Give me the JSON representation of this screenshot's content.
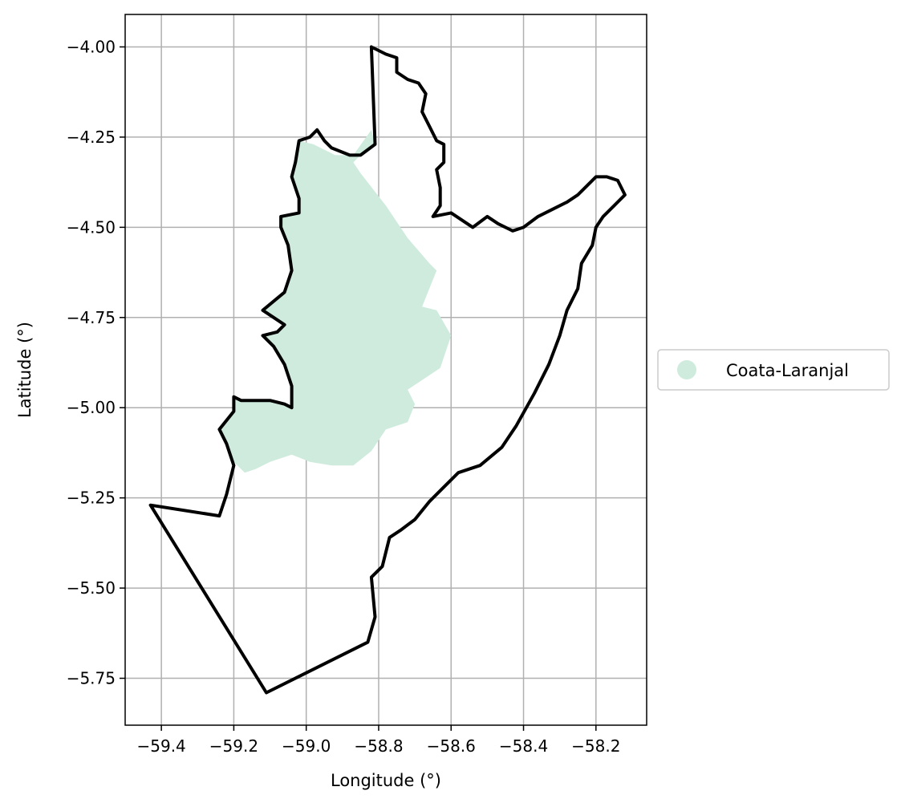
{
  "map": {
    "xlabel": "Longitude (°)",
    "ylabel": "Latitude (°)",
    "x_ticks": [
      "−59.4",
      "−59.2",
      "−59.0",
      "−58.8",
      "−58.6",
      "−58.4",
      "−58.2"
    ],
    "y_ticks": [
      "−4.00",
      "−4.25",
      "−4.50",
      "−4.75",
      "−5.00",
      "−5.25",
      "−5.50",
      "−5.75"
    ],
    "legend": {
      "placement": "center-right, outside axes",
      "entries": [
        {
          "label": "Coata-Laranjal",
          "color": "#cfebdd",
          "marker": "circle"
        }
      ]
    },
    "grid": true,
    "colors": {
      "boundary": "#000000",
      "area_fill": "#cfebdd",
      "grid": "#b0b0b0"
    }
  },
  "chart_data": {
    "type": "map",
    "xlim": [
      -59.5,
      -58.06
    ],
    "ylim": [
      -5.88,
      -3.91
    ],
    "x_tick_values": [
      -59.4,
      -59.2,
      -59.0,
      -58.8,
      -58.6,
      -58.4,
      -58.2
    ],
    "y_tick_values": [
      -4.0,
      -4.25,
      -4.5,
      -4.75,
      -5.0,
      -5.25,
      -5.5,
      -5.75
    ],
    "boundary": [
      [
        -58.82,
        -4.0
      ],
      [
        -58.78,
        -4.02
      ],
      [
        -58.75,
        -4.03
      ],
      [
        -58.75,
        -4.07
      ],
      [
        -58.72,
        -4.09
      ],
      [
        -58.69,
        -4.1
      ],
      [
        -58.67,
        -4.13
      ],
      [
        -58.68,
        -4.18
      ],
      [
        -58.66,
        -4.22
      ],
      [
        -58.64,
        -4.26
      ],
      [
        -58.62,
        -4.27
      ],
      [
        -58.62,
        -4.32
      ],
      [
        -58.64,
        -4.34
      ],
      [
        -58.63,
        -4.39
      ],
      [
        -58.63,
        -4.44
      ],
      [
        -58.65,
        -4.47
      ],
      [
        -58.6,
        -4.46
      ],
      [
        -58.57,
        -4.48
      ],
      [
        -58.54,
        -4.5
      ],
      [
        -58.5,
        -4.47
      ],
      [
        -58.47,
        -4.49
      ],
      [
        -58.43,
        -4.51
      ],
      [
        -58.4,
        -4.5
      ],
      [
        -58.36,
        -4.47
      ],
      [
        -58.32,
        -4.45
      ],
      [
        -58.28,
        -4.43
      ],
      [
        -58.25,
        -4.41
      ],
      [
        -58.2,
        -4.36
      ],
      [
        -58.17,
        -4.36
      ],
      [
        -58.14,
        -4.37
      ],
      [
        -58.12,
        -4.41
      ],
      [
        -58.15,
        -4.44
      ],
      [
        -58.18,
        -4.47
      ],
      [
        -58.2,
        -4.5
      ],
      [
        -58.21,
        -4.55
      ],
      [
        -58.24,
        -4.6
      ],
      [
        -58.25,
        -4.67
      ],
      [
        -58.28,
        -4.73
      ],
      [
        -58.3,
        -4.8
      ],
      [
        -58.33,
        -4.88
      ],
      [
        -58.37,
        -4.96
      ],
      [
        -58.42,
        -5.05
      ],
      [
        -58.46,
        -5.11
      ],
      [
        -58.52,
        -5.16
      ],
      [
        -58.58,
        -5.18
      ],
      [
        -58.62,
        -5.22
      ],
      [
        -58.66,
        -5.26
      ],
      [
        -58.7,
        -5.31
      ],
      [
        -58.74,
        -5.34
      ],
      [
        -58.77,
        -5.36
      ],
      [
        -58.79,
        -5.44
      ],
      [
        -58.82,
        -5.47
      ],
      [
        -58.81,
        -5.58
      ],
      [
        -58.83,
        -5.65
      ],
      [
        -59.11,
        -5.79
      ],
      [
        -59.43,
        -5.27
      ],
      [
        -59.24,
        -5.3
      ],
      [
        -59.22,
        -5.24
      ],
      [
        -59.2,
        -5.16
      ],
      [
        -59.22,
        -5.1
      ],
      [
        -59.24,
        -5.06
      ],
      [
        -59.2,
        -5.01
      ],
      [
        -59.2,
        -4.97
      ],
      [
        -59.18,
        -4.98
      ],
      [
        -59.1,
        -4.98
      ],
      [
        -59.06,
        -4.99
      ],
      [
        -59.04,
        -5.0
      ],
      [
        -59.04,
        -4.94
      ],
      [
        -59.06,
        -4.88
      ],
      [
        -59.09,
        -4.83
      ],
      [
        -59.12,
        -4.8
      ],
      [
        -59.08,
        -4.79
      ],
      [
        -59.06,
        -4.77
      ],
      [
        -59.09,
        -4.75
      ],
      [
        -59.12,
        -4.73
      ],
      [
        -59.06,
        -4.68
      ],
      [
        -59.04,
        -4.62
      ],
      [
        -59.05,
        -4.55
      ],
      [
        -59.07,
        -4.5
      ],
      [
        -59.07,
        -4.47
      ],
      [
        -59.02,
        -4.46
      ],
      [
        -59.02,
        -4.42
      ],
      [
        -59.04,
        -4.36
      ],
      [
        -59.03,
        -4.32
      ],
      [
        -59.02,
        -4.26
      ],
      [
        -58.99,
        -4.25
      ],
      [
        -58.97,
        -4.23
      ],
      [
        -58.95,
        -4.26
      ],
      [
        -58.93,
        -4.28
      ],
      [
        -58.88,
        -4.3
      ],
      [
        -58.85,
        -4.3
      ],
      [
        -58.81,
        -4.27
      ],
      [
        -58.82,
        -4.0
      ]
    ],
    "area": {
      "name": "Coata-Laranjal",
      "polygon": [
        [
          -58.82,
          -4.23
        ],
        [
          -58.81,
          -4.27
        ],
        [
          -58.85,
          -4.3
        ],
        [
          -58.87,
          -4.32
        ],
        [
          -58.85,
          -4.35
        ],
        [
          -58.78,
          -4.44
        ],
        [
          -58.72,
          -4.53
        ],
        [
          -58.66,
          -4.6
        ],
        [
          -58.64,
          -4.62
        ],
        [
          -58.68,
          -4.72
        ],
        [
          -58.64,
          -4.73
        ],
        [
          -58.6,
          -4.8
        ],
        [
          -58.63,
          -4.89
        ],
        [
          -58.72,
          -4.95
        ],
        [
          -58.7,
          -4.99
        ],
        [
          -58.72,
          -5.04
        ],
        [
          -58.78,
          -5.06
        ],
        [
          -58.82,
          -5.12
        ],
        [
          -58.87,
          -5.16
        ],
        [
          -58.93,
          -5.16
        ],
        [
          -58.99,
          -5.15
        ],
        [
          -59.04,
          -5.13
        ],
        [
          -59.1,
          -5.15
        ],
        [
          -59.14,
          -5.17
        ],
        [
          -59.17,
          -5.18
        ],
        [
          -59.2,
          -5.15
        ],
        [
          -59.22,
          -5.1
        ],
        [
          -59.24,
          -5.06
        ],
        [
          -59.2,
          -5.01
        ],
        [
          -59.2,
          -4.97
        ],
        [
          -59.18,
          -4.98
        ],
        [
          -59.1,
          -4.98
        ],
        [
          -59.06,
          -4.99
        ],
        [
          -59.04,
          -5.0
        ],
        [
          -59.04,
          -4.94
        ],
        [
          -59.06,
          -4.88
        ],
        [
          -59.09,
          -4.83
        ],
        [
          -59.12,
          -4.8
        ],
        [
          -59.08,
          -4.79
        ],
        [
          -59.06,
          -4.77
        ],
        [
          -59.09,
          -4.75
        ],
        [
          -59.12,
          -4.73
        ],
        [
          -59.06,
          -4.68
        ],
        [
          -59.04,
          -4.62
        ],
        [
          -59.05,
          -4.55
        ],
        [
          -59.07,
          -4.5
        ],
        [
          -59.07,
          -4.47
        ],
        [
          -59.02,
          -4.46
        ],
        [
          -59.02,
          -4.42
        ],
        [
          -59.04,
          -4.36
        ],
        [
          -59.03,
          -4.32
        ],
        [
          -59.02,
          -4.26
        ],
        [
          -58.98,
          -4.27
        ],
        [
          -58.92,
          -4.3
        ],
        [
          -58.87,
          -4.3
        ],
        [
          -58.82,
          -4.23
        ]
      ]
    }
  }
}
